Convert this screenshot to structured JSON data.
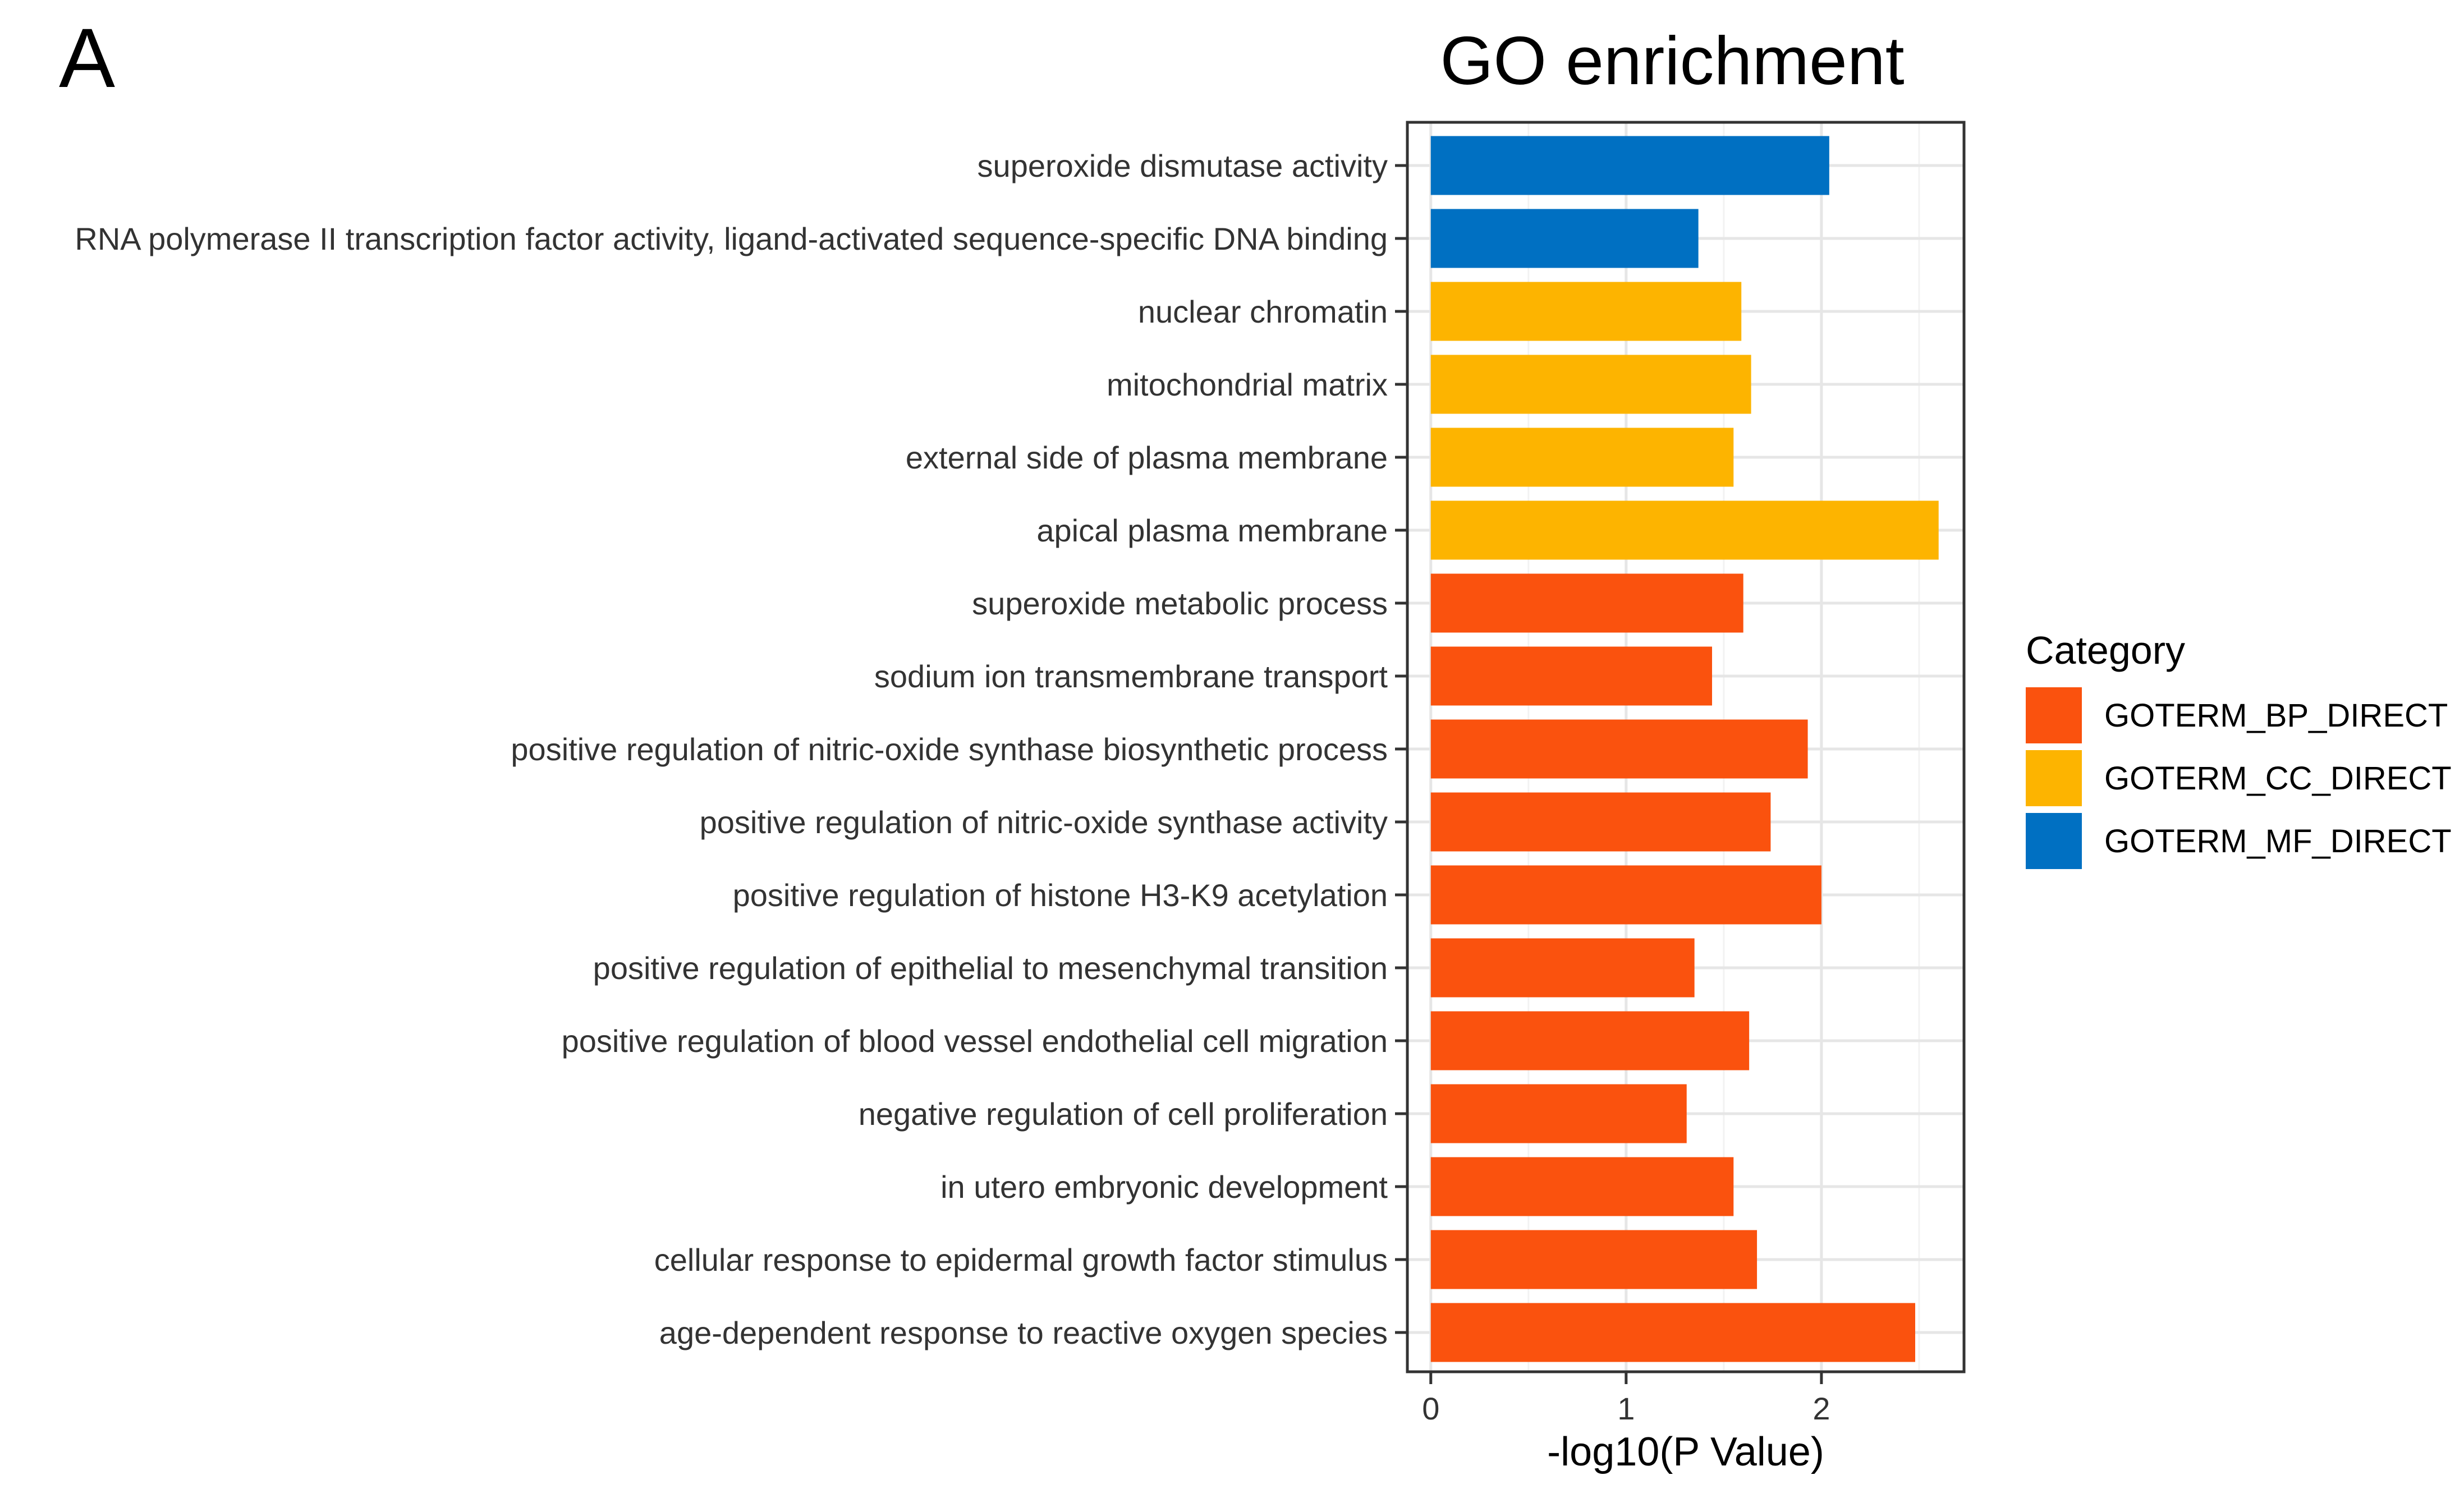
{
  "panel_label": "A",
  "chart_data": {
    "type": "bar",
    "orientation": "horizontal",
    "title": "GO enrichment",
    "xlabel": "-log10(P Value)",
    "ylabel": "",
    "xlim": [
      -0.12,
      2.73
    ],
    "x_ticks": [
      0,
      1,
      2
    ],
    "x_tick_labels": [
      "0",
      "1",
      "2"
    ],
    "grid": true,
    "categories": [
      "superoxide dismutase activity",
      "RNA polymerase II transcription factor activity, ligand-activated sequence-specific DNA binding",
      "nuclear chromatin",
      "mitochondrial matrix",
      "external side of plasma membrane",
      "apical plasma membrane",
      "superoxide metabolic process",
      "sodium ion transmembrane transport",
      "positive regulation of nitric-oxide synthase biosynthetic process",
      "positive regulation of nitric-oxide synthase activity",
      "positive regulation of histone H3-K9 acetylation",
      "positive regulation of epithelial to mesenchymal transition",
      "positive regulation of blood vessel endothelial cell migration",
      "negative regulation of cell proliferation",
      "in utero embryonic development",
      "cellular response to epidermal growth factor stimulus",
      "age-dependent response to reactive oxygen species"
    ],
    "values": [
      2.04,
      1.37,
      1.59,
      1.64,
      1.55,
      2.6,
      1.6,
      1.44,
      1.93,
      1.74,
      2.0,
      1.35,
      1.63,
      1.31,
      1.55,
      1.67,
      2.48
    ],
    "groups": [
      "GOTERM_MF_DIRECT",
      "GOTERM_MF_DIRECT",
      "GOTERM_CC_DIRECT",
      "GOTERM_CC_DIRECT",
      "GOTERM_CC_DIRECT",
      "GOTERM_CC_DIRECT",
      "GOTERM_BP_DIRECT",
      "GOTERM_BP_DIRECT",
      "GOTERM_BP_DIRECT",
      "GOTERM_BP_DIRECT",
      "GOTERM_BP_DIRECT",
      "GOTERM_BP_DIRECT",
      "GOTERM_BP_DIRECT",
      "GOTERM_BP_DIRECT",
      "GOTERM_BP_DIRECT",
      "GOTERM_BP_DIRECT",
      "GOTERM_BP_DIRECT"
    ],
    "legend": {
      "title": "Category",
      "position": "right",
      "entries": [
        {
          "name": "GOTERM_BP_DIRECT",
          "color": "#FA520E"
        },
        {
          "name": "GOTERM_CC_DIRECT",
          "color": "#FDB400"
        },
        {
          "name": "GOTERM_MF_DIRECT",
          "color": "#0070C2"
        }
      ]
    }
  }
}
